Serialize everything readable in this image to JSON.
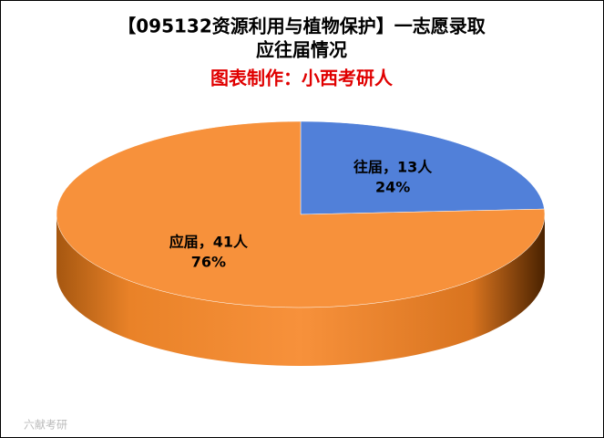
{
  "chart_data": {
    "type": "pie",
    "title": [
      "【095132资源利用与植物保护】一志愿录取",
      "应往届情况"
    ],
    "subtitle": "图表制作：小西考研人",
    "categories": [
      "往届",
      "应届"
    ],
    "values": [
      13,
      41
    ],
    "value_labels": [
      "往届，13人",
      "应届，41人"
    ],
    "percents": [
      24,
      76
    ],
    "percent_labels": [
      "24%",
      "76%"
    ],
    "colors": [
      "#5180d9",
      "#f7913b"
    ],
    "watermark": "六献考研"
  }
}
